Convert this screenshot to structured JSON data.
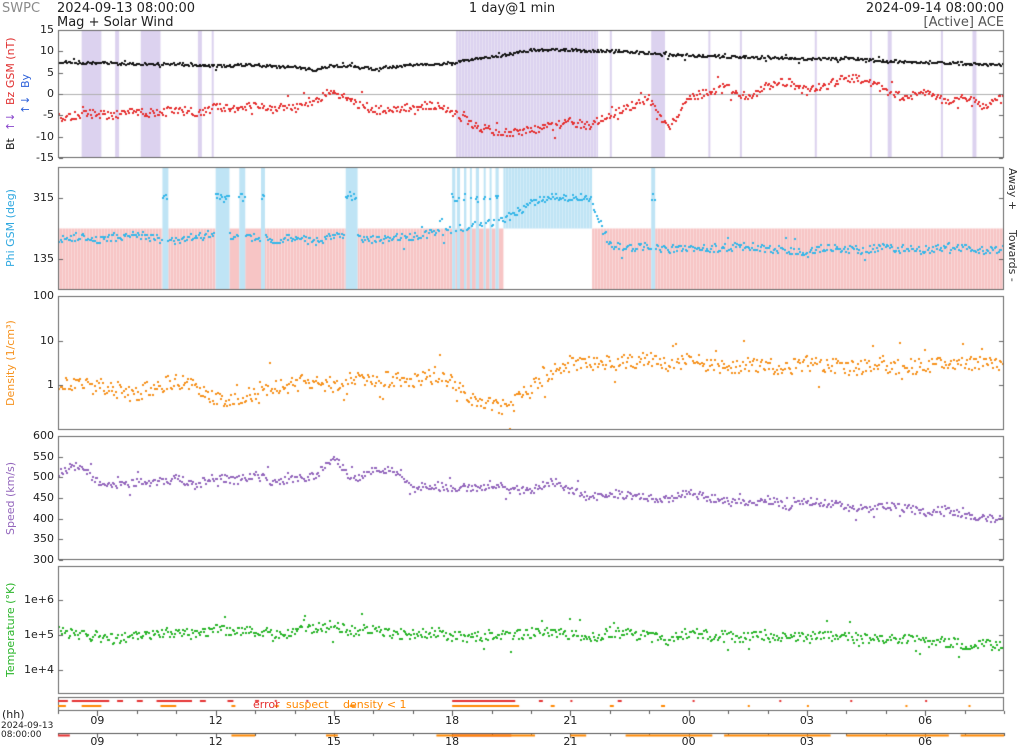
{
  "header": {
    "swpc": "SWPC",
    "start_time": "2024-09-13 08:00:00",
    "duration": "1 day@1 min",
    "end_time": "2024-09-14 08:00:00",
    "subtitle": "Mag + Solar Wind",
    "source": "[Active] ACE"
  },
  "axis": {
    "hour_label": "(hh)",
    "start_date": "2024-09-13",
    "start_clock": "08:00:00"
  },
  "chart_data": {
    "type": "scatter",
    "x_unit": "hours since 2024-09-13 08:00 UTC",
    "xlim": [
      0,
      24
    ],
    "hour_ticks": {
      "labels": [
        "09",
        "12",
        "15",
        "18",
        "21",
        "00",
        "03",
        "06"
      ],
      "hours": [
        1,
        4,
        7,
        10,
        13,
        16,
        19,
        22
      ]
    },
    "trend_hours": [
      0,
      0.5,
      1,
      1.5,
      2,
      2.5,
      3,
      3.5,
      4,
      4.5,
      5,
      5.5,
      6,
      6.5,
      7,
      7.5,
      8,
      8.5,
      9,
      9.5,
      10,
      10.5,
      11,
      11.5,
      12,
      12.5,
      13,
      13.5,
      14,
      14.5,
      15,
      15.5,
      16,
      16.5,
      17,
      17.5,
      18,
      18.5,
      19,
      19.5,
      20,
      20.5,
      21,
      21.5,
      22,
      22.5,
      23,
      23.5,
      24
    ],
    "panels": [
      {
        "name": "mag",
        "ylim": [
          -15,
          15
        ],
        "scale": "linear",
        "zero_line": true,
        "ytick_values": [
          15,
          10,
          5,
          0,
          -5,
          -10,
          -15
        ],
        "ytick_labels": [
          "15",
          "10",
          "5",
          "0",
          "-5",
          "-10",
          "-15"
        ],
        "ylabels": [
          {
            "text": "Bt",
            "color": "#111111"
          },
          {
            "text": "↑↓",
            "color": "#8844cc"
          },
          {
            "text": "Bz GSM (nT)",
            "color": "#e03030"
          },
          {
            "text": "↑↓",
            "color": "#2b5fd9"
          },
          {
            "text": "By",
            "color": "#2b5fd9"
          }
        ],
        "shade": {
          "color": "#dcd2ef",
          "regions": [
            [
              0.6,
              1.1
            ],
            [
              1.45,
              1.55
            ],
            [
              2.1,
              2.6
            ],
            [
              3.55,
              3.65
            ],
            [
              3.9,
              3.95
            ],
            [
              10.1,
              13.7
            ],
            [
              14.0,
              14.05
            ],
            [
              15.05,
              15.4
            ],
            [
              16.5,
              16.55
            ],
            [
              17.3,
              17.35
            ],
            [
              19.2,
              19.25
            ],
            [
              20.6,
              20.65
            ],
            [
              21.05,
              21.15
            ],
            [
              22.4,
              22.45
            ],
            [
              23.2,
              23.3
            ]
          ]
        },
        "series": [
          {
            "name": "Bz GSM",
            "color": "#e53030",
            "jitter": 1.0,
            "trend": [
              -5.5,
              -5.0,
              -4.6,
              -5.0,
              -4.2,
              -4.6,
              -3.6,
              -4.4,
              -3.2,
              -3.6,
              -3.0,
              -4.0,
              -3.4,
              -1.2,
              0.5,
              -2.2,
              -3.6,
              -4.0,
              -3.0,
              -2.6,
              -4.2,
              -7.0,
              -8.6,
              -9.2,
              -8.6,
              -7.6,
              -6.6,
              -7.4,
              -5.0,
              -3.0,
              -1.2,
              -8.0,
              -1.0,
              0.5,
              1.5,
              -1.0,
              2.0,
              3.0,
              0.5,
              2.0,
              4.0,
              3.0,
              1.0,
              -1.0,
              0.5,
              -2.0,
              -1.0,
              -3.0,
              -1.0
            ]
          },
          {
            "name": "Bt",
            "color": "#151515",
            "jitter": 0.3,
            "trend": [
              7.6,
              7.4,
              7.2,
              7.1,
              7.0,
              6.9,
              7.0,
              6.8,
              6.6,
              6.7,
              6.8,
              6.5,
              6.3,
              5.6,
              6.6,
              6.4,
              5.9,
              6.4,
              6.8,
              6.9,
              7.2,
              8.1,
              8.6,
              9.3,
              10.2,
              10.4,
              10.3,
              10.0,
              10.0,
              9.8,
              9.5,
              9.2,
              9.0,
              8.8,
              8.7,
              8.6,
              8.5,
              8.3,
              8.1,
              8.3,
              8.4,
              8.0,
              7.7,
              7.5,
              7.4,
              7.2,
              7.1,
              6.9,
              6.8
            ]
          }
        ]
      },
      {
        "name": "phi",
        "ylabel": "Phi GSM (deg)",
        "label_color": "#2fa8e0",
        "right_labels": [
          "Away +",
          "Towards -"
        ],
        "ylim": [
          45,
          405
        ],
        "scale": "linear",
        "ytick_values": [
          315,
          135
        ],
        "ytick_labels": [
          "315",
          "135"
        ],
        "sectors": {
          "boundary": 225,
          "away_color": "#f7c5c5",
          "toward_color": "#bfe4f5",
          "away": [
            [
              0,
              2.65
            ],
            [
              2.8,
              4.0
            ],
            [
              4.35,
              4.6
            ],
            [
              4.75,
              5.15
            ],
            [
              5.25,
              7.3
            ],
            [
              7.6,
              10.0
            ],
            [
              10.08,
              10.12
            ],
            [
              10.2,
              10.3
            ],
            [
              10.36,
              10.45
            ],
            [
              10.5,
              10.6
            ],
            [
              10.68,
              10.8
            ],
            [
              10.85,
              10.95
            ],
            [
              11.0,
              11.1
            ],
            [
              11.18,
              11.3
            ],
            [
              13.55,
              15.05
            ],
            [
              15.15,
              24
            ]
          ],
          "toward": [
            [
              2.65,
              2.8
            ],
            [
              4.0,
              4.35
            ],
            [
              4.6,
              4.75
            ],
            [
              5.15,
              5.25
            ],
            [
              7.3,
              7.6
            ],
            [
              10.0,
              10.08
            ],
            [
              10.12,
              10.2
            ],
            [
              10.3,
              10.36
            ],
            [
              10.45,
              10.5
            ],
            [
              10.6,
              10.68
            ],
            [
              10.8,
              10.85
            ],
            [
              10.95,
              11.0
            ],
            [
              11.1,
              11.18
            ],
            [
              11.3,
              13.55
            ],
            [
              15.05,
              15.15
            ]
          ]
        },
        "series": [
          {
            "name": "Phi GSM",
            "color": "#35b6e8",
            "jitter": 12,
            "trend": [
              195,
              200,
              192,
              201,
              206,
              196,
              188,
              200,
              210,
              196,
              200,
              190,
              196,
              186,
              200,
              198,
              192,
              196,
              200,
              212,
              222,
              232,
              242,
              262,
              300,
              315,
              318,
              315,
              175,
              170,
              172,
              162,
              170,
              166,
              170,
              175,
              166,
              160,
              152,
              170,
              165,
              160,
              170,
              164,
              160,
              170,
              166,
              160,
              165
            ]
          }
        ]
      },
      {
        "name": "density",
        "ylabel": "Density (1/cm³)",
        "label_color": "#f6921e",
        "ylim": [
          0.1,
          100
        ],
        "scale": "log",
        "ytick_values": [
          100,
          10,
          1
        ],
        "ytick_labels": [
          "100",
          "10",
          "1"
        ],
        "series": [
          {
            "name": "Density",
            "color": "#f6921e",
            "jitter": 0.18,
            "trend": [
              1.2,
              0.9,
              1.0,
              0.8,
              0.6,
              1.0,
              1.2,
              0.9,
              0.5,
              0.45,
              0.7,
              1.0,
              1.1,
              1.2,
              1.0,
              1.5,
              1.2,
              1.4,
              1.3,
              1.5,
              1.2,
              0.5,
              0.35,
              0.3,
              0.8,
              2.0,
              3.0,
              3.2,
              3.0,
              3.5,
              4.0,
              3.0,
              3.5,
              3.0,
              2.5,
              3.0,
              2.8,
              2.5,
              3.0,
              2.8,
              2.5,
              2.6,
              2.8,
              2.5,
              2.7,
              3.0,
              3.2,
              3.5,
              3.0
            ]
          }
        ]
      },
      {
        "name": "speed",
        "ylabel": "Speed (km/s)",
        "label_color": "#9467bd",
        "ylim": [
          300,
          600
        ],
        "scale": "linear",
        "ytick_values": [
          600,
          550,
          500,
          450,
          400,
          350,
          300
        ],
        "ytick_labels": [
          "600",
          "550",
          "500",
          "450",
          "400",
          "350",
          "300"
        ],
        "series": [
          {
            "name": "Speed",
            "color": "#9467bd",
            "jitter": 10,
            "trend": [
              510,
              530,
              492,
              481,
              486,
              491,
              496,
              481,
              500,
              491,
              506,
              486,
              496,
              501,
              550,
              491,
              521,
              520,
              472,
              481,
              471,
              476,
              481,
              471,
              466,
              491,
              471,
              451,
              461,
              456,
              451,
              446,
              461,
              451,
              446,
              441,
              446,
              431,
              441,
              436,
              431,
              421,
              431,
              426,
              416,
              421,
              411,
              401,
              396
            ]
          }
        ]
      },
      {
        "name": "temp",
        "ylabel": "Temperature (°K)",
        "label_color": "#2ab52a",
        "ylim": [
          2000,
          9400000
        ],
        "scale": "log",
        "ytick_values": [
          1000000,
          100000,
          10000
        ],
        "ytick_labels": [
          "1e+6",
          "1e+5",
          "1e+4"
        ],
        "series": [
          {
            "name": "Temperature",
            "color": "#2ab52a",
            "jitter": 0.15,
            "trend": [
              120000,
              100000,
              90000,
              72000,
              100000,
              110000,
              120000,
              92000,
              150000,
              120000,
              130000,
              100000,
              120000,
              150000,
              180000,
              120000,
              150000,
              110000,
              100000,
              120000,
              90000,
              80000,
              100000,
              92000,
              110000,
              120000,
              100000,
              82000,
              120000,
              100000,
              90000,
              72000,
              110000,
              100000,
              90000,
              82000,
              100000,
              90000,
              80000,
              90000,
              85000,
              80000,
              75000,
              70000,
              65000,
              60000,
              55000,
              52000,
              50000
            ]
          }
        ]
      }
    ],
    "flags": {
      "labels": [
        {
          "text": "error",
          "color": "#e53030"
        },
        {
          "text": "suspect",
          "color": "#ff8800"
        },
        {
          "text": "density < 1",
          "color": "#ff8800"
        }
      ],
      "rows": [
        {
          "color": "#e53030",
          "ranges": [
            [
              0,
              0.25
            ],
            [
              0.35,
              1.3
            ],
            [
              1.5,
              1.65
            ],
            [
              2.0,
              2.15
            ],
            [
              2.5,
              3.4
            ],
            [
              3.6,
              3.75
            ],
            [
              4.3,
              4.45
            ],
            [
              5.0,
              5.1
            ],
            [
              5.5,
              5.55
            ],
            [
              6.3,
              6.35
            ],
            [
              10.0,
              11.6
            ],
            [
              12.2,
              12.3
            ],
            [
              13.0,
              13.05
            ],
            [
              14.2,
              14.3
            ],
            [
              16.1,
              16.15
            ],
            [
              18.3,
              18.35
            ],
            [
              20.1,
              20.15
            ],
            [
              22.0,
              22.05
            ]
          ]
        },
        {
          "color": "#ff8800",
          "ranges": [
            [
              0,
              0.2
            ],
            [
              0.6,
              1.1
            ],
            [
              2.6,
              3.0
            ],
            [
              4.4,
              4.5
            ],
            [
              5.5,
              5.6
            ],
            [
              7.4,
              7.55
            ],
            [
              10.0,
              11.7
            ],
            [
              12.5,
              12.6
            ],
            [
              14.0,
              14.1
            ],
            [
              15.3,
              15.4
            ],
            [
              17.5,
              17.55
            ],
            [
              19.0,
              19.05
            ],
            [
              21.5,
              21.55
            ],
            [
              23.1,
              23.15
            ]
          ]
        }
      ],
      "axis2_marks": [
        {
          "color": "#e53030",
          "ranges": [
            [
              0,
              0.3
            ],
            [
              10.0,
              11.5
            ]
          ]
        },
        {
          "color": "#ff8800",
          "ranges": [
            [
              4.4,
              5.0
            ],
            [
              6.8,
              7.1
            ],
            [
              9.6,
              12.1
            ],
            [
              13.0,
              13.4
            ],
            [
              14.4,
              16.6
            ],
            [
              16.9,
              19.6
            ],
            [
              20.0,
              22.6
            ],
            [
              22.9,
              24
            ]
          ]
        }
      ]
    }
  }
}
